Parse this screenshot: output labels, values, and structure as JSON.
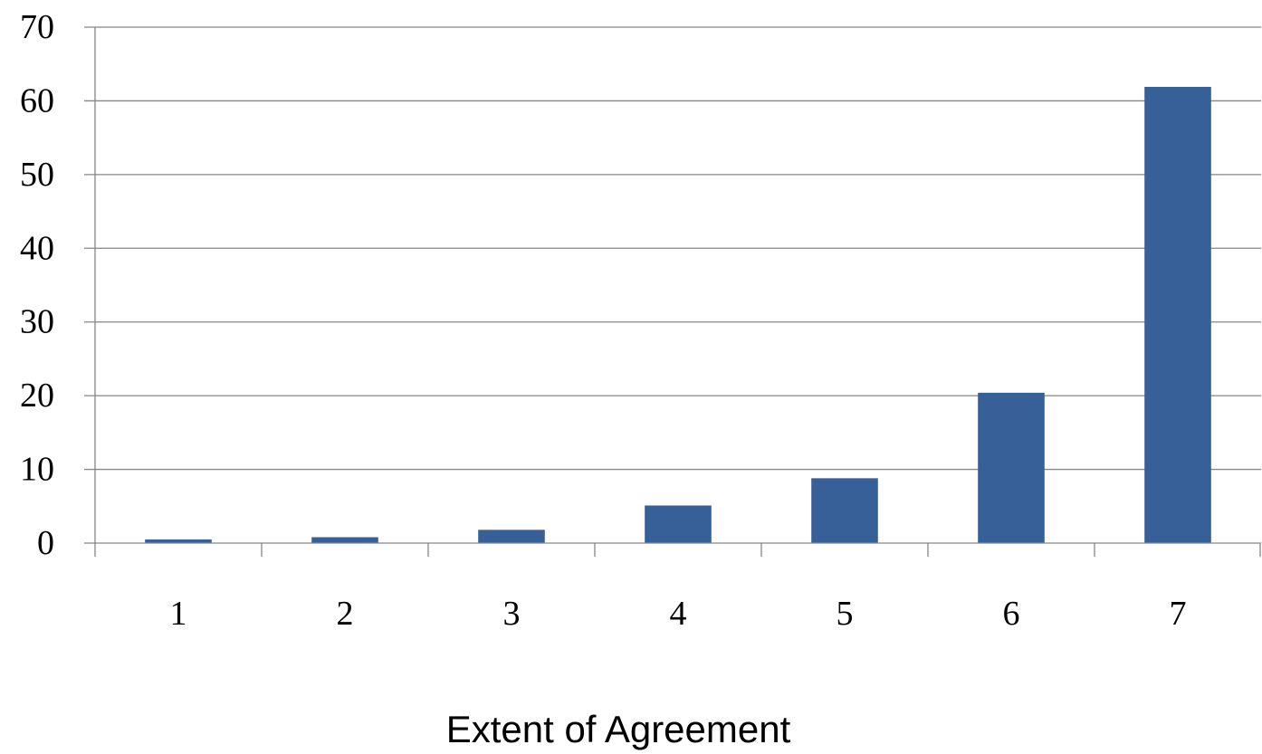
{
  "chart_data": {
    "type": "bar",
    "categories": [
      "1",
      "2",
      "3",
      "4",
      "5",
      "6",
      "7"
    ],
    "values": [
      0.5,
      0.8,
      1.8,
      5.1,
      8.8,
      20.4,
      61.9
    ],
    "xlabel": "Extent of Agreement",
    "ylabel": "",
    "ylim": [
      0,
      70
    ],
    "yticks": [
      "0",
      "10",
      "20",
      "30",
      "40",
      "50",
      "60",
      "70"
    ],
    "grid": true,
    "legend": "none",
    "bar_color": "#375F98"
  }
}
